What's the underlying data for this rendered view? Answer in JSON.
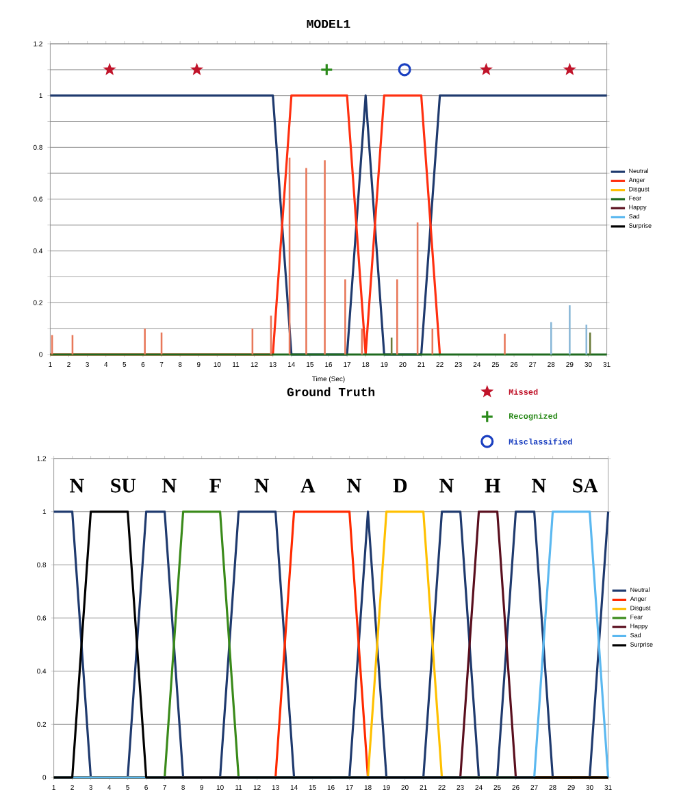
{
  "chart_data": [
    {
      "type": "line",
      "title": "MODEL1",
      "xlabel": "Time (Sec)",
      "xlim": [
        1,
        31
      ],
      "xticks": [
        1,
        2,
        3,
        4,
        5,
        6,
        7,
        8,
        9,
        10,
        11,
        12,
        13,
        14,
        15,
        16,
        17,
        18,
        19,
        20,
        21,
        22,
        23,
        24,
        25,
        26,
        27,
        28,
        29,
        30,
        31
      ],
      "ylim": [
        0,
        1.2
      ],
      "yticks": [
        0,
        {
          "value": 0.1,
          "label": null
        },
        0.2,
        {
          "value": 0.3,
          "label": null
        },
        0.4,
        {
          "value": 0.5,
          "label": null
        },
        0.6,
        {
          "value": 0.7,
          "label": null
        },
        0.8,
        {
          "value": 0.9,
          "label": null
        },
        1,
        {
          "value": 1.1,
          "label": null
        },
        1.2
      ],
      "grid": "y",
      "legend": "right",
      "series": [
        {
          "name": "Neutral",
          "color": "#1f3a6e",
          "x": [
            1,
            13,
            14,
            17,
            18,
            19,
            21,
            22,
            31
          ],
          "values": [
            1,
            1,
            0,
            0,
            1,
            0,
            0,
            1,
            1
          ]
        },
        {
          "name": "Anger",
          "color": "#ff3010",
          "x": [
            1,
            13,
            14,
            17,
            18,
            19,
            21,
            22
          ],
          "values": [
            0,
            0,
            1,
            1,
            0,
            1,
            1,
            0
          ]
        },
        {
          "name": "Disgust",
          "color": "#ffc000"
        },
        {
          "name": "Fear",
          "color": "#1f6a1f",
          "x": [
            1,
            31
          ],
          "values": [
            0,
            0
          ]
        },
        {
          "name": "Happy",
          "color": "#5a0f1e"
        },
        {
          "name": "Sad",
          "color": "#5bb8f0"
        },
        {
          "name": "Surprise",
          "color": "#000000"
        },
        {
          "type": "bar",
          "color": "#e8785a",
          "x": [
            1.1,
            2.2,
            6.1,
            7.0,
            11.9,
            12.9,
            13.9,
            14.8,
            15.8,
            16.9,
            17.8,
            19.7,
            20.8,
            21.6,
            25.5
          ],
          "values": [
            0.075,
            0.075,
            0.1,
            0.085,
            0.1,
            0.15,
            0.76,
            0.72,
            0.75,
            0.29,
            0.1,
            0.29,
            0.51,
            0.1,
            0.08
          ]
        },
        {
          "type": "bar",
          "color": "#6a7a3a",
          "x": [
            19.4,
            30.1
          ],
          "values": [
            0.065,
            0.085
          ]
        },
        {
          "type": "bar",
          "color": "#8ab8d8",
          "x": [
            28.0,
            29.0,
            29.9
          ],
          "values": [
            0.125,
            0.19,
            0.115
          ]
        },
        {
          "type": "scatter",
          "name": "Missed",
          "marker": "star",
          "color": "#c0142a",
          "x": [
            4.2,
            8.9,
            24.5,
            29.0
          ],
          "values": [
            1.1,
            1.1,
            1.1,
            1.1
          ]
        },
        {
          "type": "scatter",
          "name": "Recognized",
          "marker": "cross",
          "color": "#2a8a1a",
          "x": [
            15.9
          ],
          "values": [
            1.1
          ]
        },
        {
          "type": "scatter",
          "name": "Misclassified",
          "marker": "circle",
          "color": "#1a3fc0",
          "x": [
            20.1
          ],
          "values": [
            1.1
          ]
        }
      ]
    },
    {
      "type": "line",
      "title": "Ground Truth",
      "xlim": [
        1,
        31
      ],
      "xticks": [
        1,
        2,
        3,
        4,
        5,
        6,
        7,
        8,
        9,
        10,
        11,
        12,
        13,
        14,
        15,
        16,
        17,
        18,
        19,
        20,
        21,
        22,
        23,
        24,
        25,
        26,
        27,
        28,
        29,
        30,
        31
      ],
      "ylim": [
        0,
        1.2
      ],
      "yticks": [
        0,
        0.2,
        0.4,
        0.6,
        0.8,
        1,
        1.2
      ],
      "grid": "y",
      "legend": "right",
      "annotations": [
        "N",
        "SU",
        "N",
        "F",
        "N",
        "A",
        "N",
        "D",
        "N",
        "H",
        "N",
        "SA"
      ],
      "series": [
        {
          "name": "Neutral",
          "color": "#1f3a6e",
          "x": [
            1,
            2,
            3,
            5,
            6,
            7,
            8,
            10,
            11,
            13,
            14,
            17,
            18,
            19,
            21,
            22,
            23,
            24,
            25,
            26,
            27,
            28,
            30,
            31
          ],
          "values": [
            1,
            1,
            0,
            0,
            1,
            1,
            0,
            0,
            1,
            1,
            0,
            0,
            1,
            0,
            0,
            1,
            1,
            0,
            0,
            1,
            1,
            0,
            0,
            1
          ]
        },
        {
          "name": "Anger",
          "color": "#ff2a00",
          "x": [
            1,
            13,
            14,
            17,
            18,
            31
          ],
          "values": [
            0,
            0,
            1,
            1,
            0,
            0
          ]
        },
        {
          "name": "Disgust",
          "color": "#ffc000",
          "x": [
            1,
            18,
            19,
            21,
            22,
            31
          ],
          "values": [
            0,
            0,
            1,
            1,
            0,
            0
          ]
        },
        {
          "name": "Fear",
          "color": "#3a8a1a",
          "x": [
            1,
            7,
            8,
            10,
            11,
            31
          ],
          "values": [
            0,
            0,
            1,
            1,
            0,
            0
          ]
        },
        {
          "name": "Happy",
          "color": "#5a0f1e",
          "x": [
            1,
            23,
            24,
            25,
            26,
            31
          ],
          "values": [
            0,
            0,
            1,
            1,
            0,
            0
          ]
        },
        {
          "name": "Sad",
          "color": "#5bb8f0",
          "x": [
            1,
            27,
            28,
            30,
            31
          ],
          "values": [
            0,
            0,
            1,
            1,
            0
          ]
        },
        {
          "name": "Surprise",
          "color": "#000000",
          "x": [
            1,
            2,
            3,
            5,
            6,
            31
          ],
          "values": [
            0,
            0,
            1,
            1,
            0,
            0
          ]
        }
      ]
    }
  ]
}
